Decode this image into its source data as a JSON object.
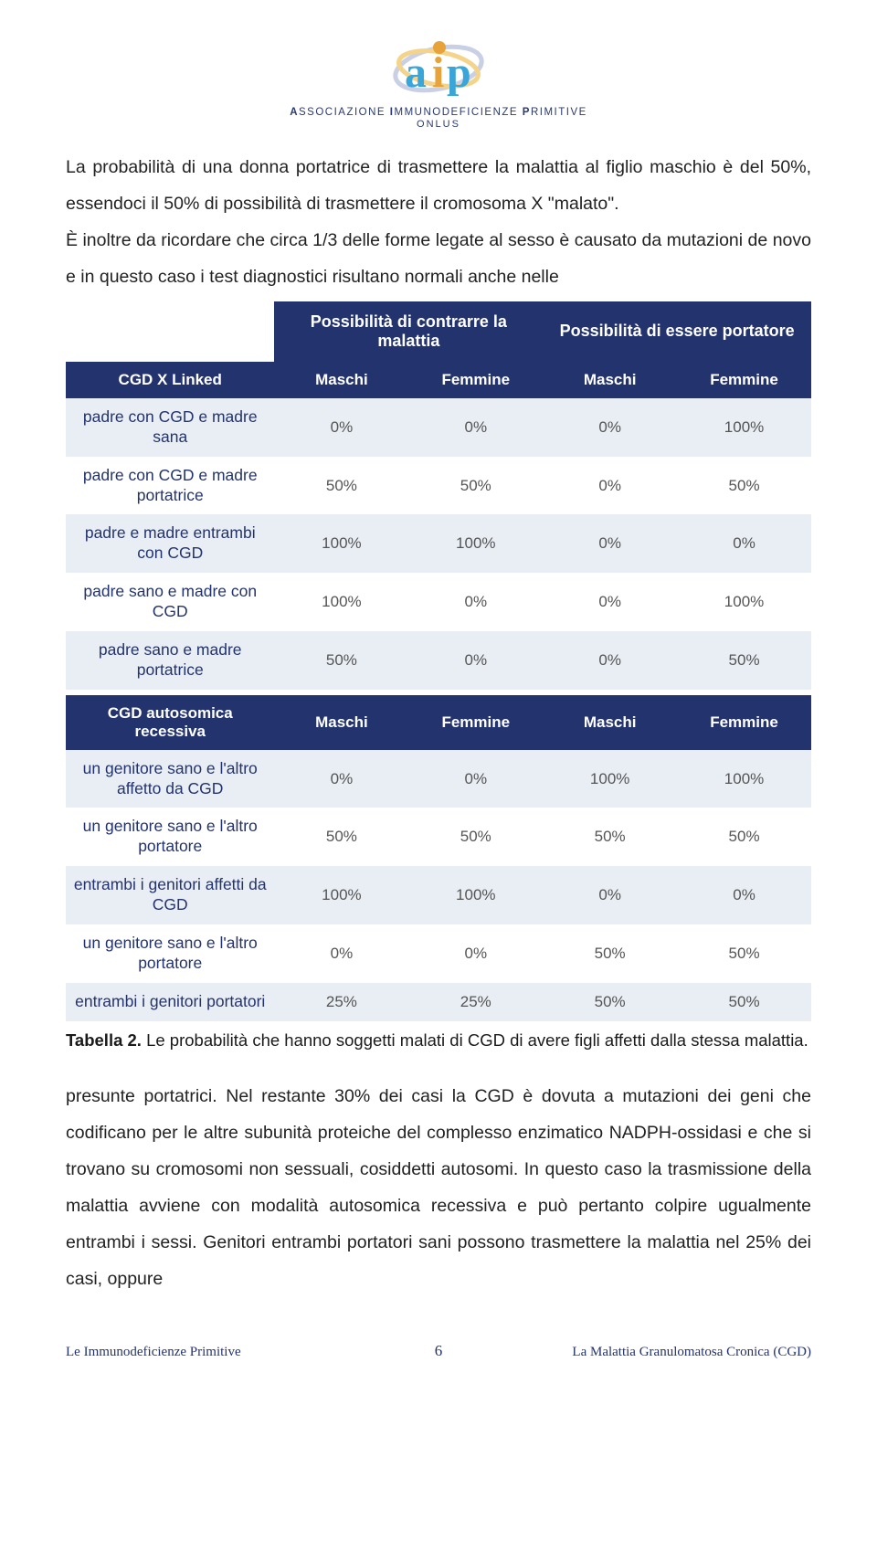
{
  "logo": {
    "letters": "aip",
    "colors": {
      "a": "#3aa5d8",
      "i": "#e7a23a",
      "p": "#3aa5d8"
    },
    "ring1": "#c9cfe4",
    "ring2": "#f3d48a",
    "tag_prefix": "A",
    "tag_word1": "SSOCIAZIONE ",
    "tag_prefix2": "I",
    "tag_word2": "MMUNODEFICIENZE ",
    "tag_prefix3": "P",
    "tag_word3": "RIMITIVE",
    "sub": "ONLUS"
  },
  "intro_text": "La probabilità di una donna portatrice di trasmettere la malattia al figlio maschio è del 50%, essendoci il 50% di possibilità di trasmettere il cromosoma X \"malato\".",
  "intro_text2": "È inoltre da ricordare che circa 1/3 delle forme legate al sesso è causato da mutazioni de novo e in questo caso i test diagnostici risultano normali anche nelle",
  "table": {
    "group_headers": [
      "Possibilità di contrarre la malattia",
      "Possibilità di essere portatore"
    ],
    "sub_headers": [
      "Maschi",
      "Femmine",
      "Maschi",
      "Femmine"
    ],
    "section1_label": "CGD X Linked",
    "section1_rows": [
      {
        "label": "padre con CGD e madre sana",
        "vals": [
          "0%",
          "0%",
          "0%",
          "100%"
        ]
      },
      {
        "label": "padre con CGD e madre portatrice",
        "vals": [
          "50%",
          "50%",
          "0%",
          "50%"
        ]
      },
      {
        "label": "padre e madre entrambi con CGD",
        "vals": [
          "100%",
          "100%",
          "0%",
          "0%"
        ]
      },
      {
        "label": "padre sano e madre con CGD",
        "vals": [
          "100%",
          "0%",
          "0%",
          "100%"
        ]
      },
      {
        "label": "padre sano e madre portatrice",
        "vals": [
          "50%",
          "0%",
          "0%",
          "50%"
        ]
      }
    ],
    "section2_label": "CGD autosomica recessiva",
    "section2_rows": [
      {
        "label": "un genitore sano e l'altro affetto da CGD",
        "vals": [
          "0%",
          "0%",
          "100%",
          "100%"
        ]
      },
      {
        "label": "un genitore sano e l'altro portatore",
        "vals": [
          "50%",
          "50%",
          "50%",
          "50%"
        ]
      },
      {
        "label": "entrambi i genitori affetti da CGD",
        "vals": [
          "100%",
          "100%",
          "0%",
          "0%"
        ]
      },
      {
        "label": "un genitore sano e l'altro portatore",
        "vals": [
          "0%",
          "0%",
          "50%",
          "50%"
        ]
      },
      {
        "label": "entrambi i genitori portatori",
        "vals": [
          "25%",
          "25%",
          "50%",
          "50%"
        ]
      }
    ]
  },
  "caption_bold": "Tabella 2.",
  "caption_text": " Le probabilità che hanno soggetti malati di CGD di avere figli affetti dalla stessa malattia.",
  "after_text": "presunte portatrici. Nel restante 30% dei casi la CGD è dovuta a mutazioni dei geni che codificano per le altre subunità proteiche del complesso enzimatico NADPH-ossidasi e che si trovano su cromosomi non sessuali, cosiddetti autosomi. In questo caso la trasmissione della malattia avviene con modalità autosomica recessiva e può pertanto colpire ugualmente entrambi i sessi. Genitori entrambi portatori sani possono trasmettere la malattia nel 25% dei casi, oppure",
  "footer": {
    "left": "Le Immunodeficienze Primitive",
    "page": "6",
    "right": "La Malattia Granulomatosa Cronica (CGD)"
  },
  "colors": {
    "header_bg": "#23336e",
    "row_bg": "#e9eef5",
    "row_alt_bg": "#ffffff",
    "text": "#222222",
    "label_text": "#23336e"
  }
}
